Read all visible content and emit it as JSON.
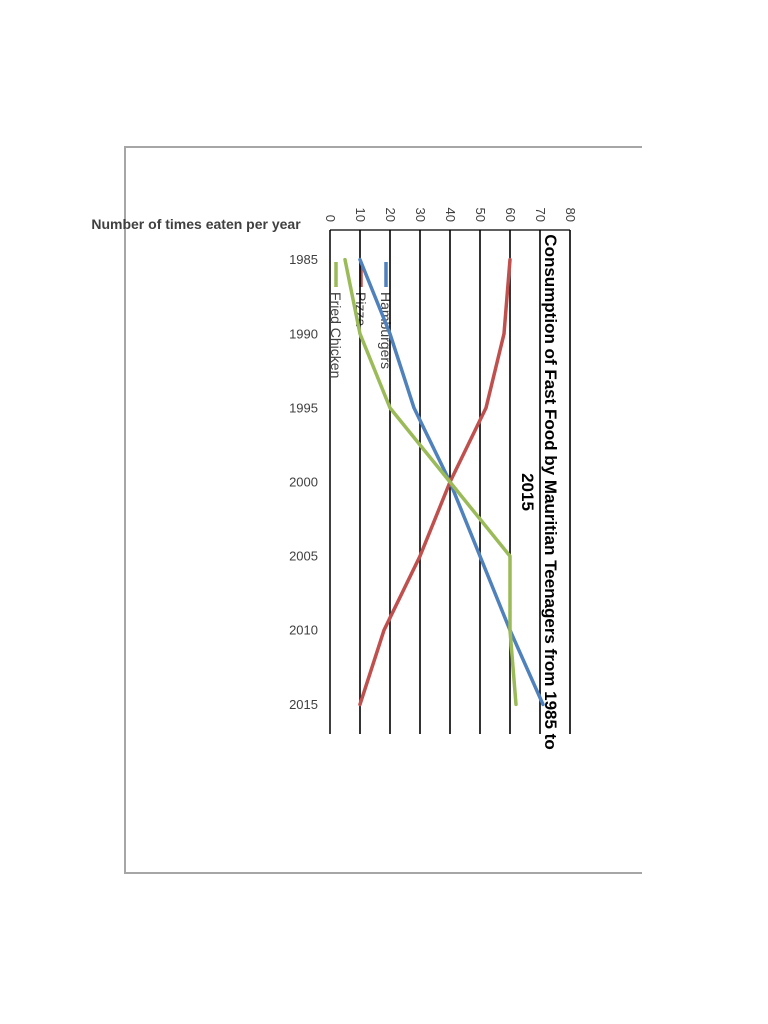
{
  "chart_data": {
    "type": "line",
    "title_line1": "Consumption of Fast Food by Mauritian Teenagers from 1985 to",
    "title_line2": "2015",
    "xlabel": "",
    "ylabel": "Number of times eaten per year",
    "x": [
      1985,
      1990,
      1995,
      2000,
      2005,
      2010,
      2015
    ],
    "xlim": [
      1983,
      2017
    ],
    "ylim": [
      0,
      80
    ],
    "y_ticks": [
      0,
      10,
      20,
      30,
      40,
      50,
      60,
      70,
      80
    ],
    "x_tick_labels": [
      "1985",
      "1990",
      "1995",
      "2000",
      "2005",
      "2010",
      "2015"
    ],
    "y_tick_labels": [
      "0",
      "10",
      "20",
      "30",
      "40",
      "50",
      "60",
      "70",
      "80"
    ],
    "grid": true,
    "legend_position": "right",
    "rotated": "90deg-clockwise",
    "series": [
      {
        "name": "Hamburgers",
        "color": "#4f81bd",
        "values": [
          10,
          20,
          28,
          40,
          50,
          60,
          71
        ]
      },
      {
        "name": "Pizza",
        "color": "#c0504d",
        "values": [
          60,
          58,
          52,
          40,
          30,
          18,
          10
        ]
      },
      {
        "name": "Fried Chicken",
        "color": "#9bbb59",
        "values": [
          5,
          10,
          20,
          40,
          60,
          60,
          62
        ]
      }
    ]
  }
}
